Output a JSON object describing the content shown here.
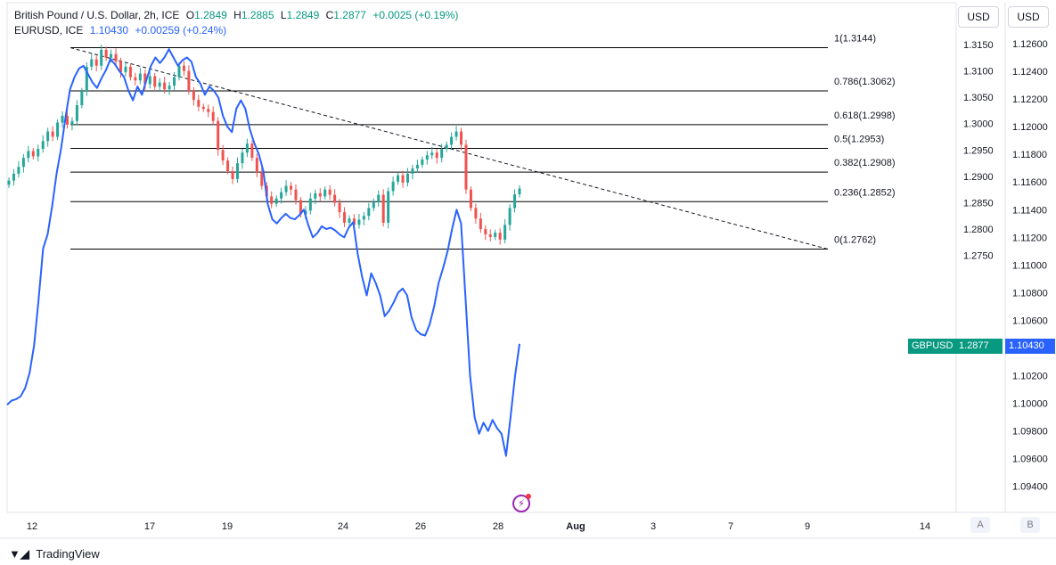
{
  "legend": {
    "line1": {
      "symbol": "British Pound / U.S. Dollar, 2h, ICE",
      "o_label": "O",
      "o": "1.2849",
      "h_label": "H",
      "h": "1.2885",
      "l_label": "L",
      "l": "1.2849",
      "c_label": "C",
      "c": "1.2877",
      "change": "+0.0025 (+0.19%)"
    },
    "line2": {
      "symbol": "EURUSD, ICE",
      "value": "1.10430",
      "change": "+0.00259 (+0.24%)"
    }
  },
  "currency_buttons": [
    "USD",
    "USD"
  ],
  "axis_buttons": [
    "A",
    "B"
  ],
  "branding": {
    "name": "TradingView"
  },
  "badges": {
    "symbol": "GBPUSD",
    "gbpusd_price": "1.2877",
    "eurusd_price": "1.10430"
  },
  "colors": {
    "up": "#26a69a",
    "down": "#ef5350",
    "eurusd_line": "#2962ff",
    "fib_line": "#000000",
    "badge_symbol": "#089981",
    "badge_eur": "#2962ff",
    "flash_icon": "#9c27b0"
  },
  "chart_data": {
    "type": "line",
    "x_axis": {
      "tick_labels": [
        "12",
        "17",
        "19",
        "24",
        "26",
        "28",
        "Aug",
        "3",
        "7",
        "9",
        "14"
      ]
    },
    "y_axis_left": {
      "label": "GBPUSD",
      "ticks": [
        "1.3150",
        "1.3100",
        "1.3050",
        "1.3000",
        "1.2950",
        "1.2900",
        "1.2850",
        "1.2800",
        "1.2750"
      ],
      "range": [
        1.2735,
        1.3185
      ]
    },
    "y_axis_right": {
      "label": "EURUSD",
      "ticks": [
        "1.12600",
        "1.12400",
        "1.12200",
        "1.12000",
        "1.11800",
        "1.11600",
        "1.11400",
        "1.11200",
        "1.11000",
        "1.10800",
        "1.10600",
        "1.10400",
        "1.10200",
        "1.10000",
        "1.09800",
        "1.09600",
        "1.09400"
      ],
      "range": [
        1.093,
        1.1277
      ]
    },
    "fibonacci": [
      {
        "level": "1",
        "price": 1.3144,
        "label": "1(1.3144)"
      },
      {
        "level": "0.786",
        "price": 1.3062,
        "label": "0.786(1.3062)"
      },
      {
        "level": "0.618",
        "price": 1.2998,
        "label": "0.618(1.2998)"
      },
      {
        "level": "0.5",
        "price": 1.2953,
        "label": "0.5(1.2953)"
      },
      {
        "level": "0.382",
        "price": 1.2908,
        "label": "0.382(1.2908)"
      },
      {
        "level": "0.236",
        "price": 1.2852,
        "label": "0.236(1.2852)"
      },
      {
        "level": "0",
        "price": 1.2762,
        "label": "0(1.2762)"
      }
    ],
    "trendline": {
      "style": "dashed",
      "from_price": 1.3144,
      "to_price": 1.2762
    },
    "series": [
      {
        "name": "British Pound / U.S. Dollar",
        "type": "candlestick",
        "closes": [
          1.2892,
          1.2905,
          1.2918,
          1.2935,
          1.2948,
          1.2938,
          1.2952,
          1.2967,
          1.2985,
          1.2975,
          1.3002,
          1.3015,
          1.2998,
          1.3005,
          1.3035,
          1.3062,
          1.3108,
          1.3122,
          1.311,
          1.314,
          1.3125,
          1.3132,
          1.3118,
          1.3098,
          1.3108,
          1.3088,
          1.3082,
          1.3095,
          1.3075,
          1.309,
          1.307,
          1.3078,
          1.3065,
          1.3072,
          1.3088,
          1.311,
          1.31,
          1.3062,
          1.3045,
          1.3032,
          1.3028,
          1.3022,
          1.3005,
          1.295,
          1.293,
          1.291,
          1.2895,
          1.2925,
          1.2945,
          1.2962,
          1.2935,
          1.2908,
          1.2882,
          1.2862,
          1.2848,
          1.2858,
          1.287,
          1.2882,
          1.2875,
          1.2855,
          1.2828,
          1.2835,
          1.2858,
          1.2868,
          1.2862,
          1.2875,
          1.2865,
          1.285,
          1.2832,
          1.2812,
          1.282,
          1.2808,
          1.2818,
          1.2825,
          1.284,
          1.2852,
          1.2865,
          1.2812,
          1.2872,
          1.289,
          1.2902,
          1.2888,
          1.2905,
          1.2915,
          1.2922,
          1.2932,
          1.294,
          1.2945,
          1.2935,
          1.2952,
          1.296,
          1.2975,
          1.2985,
          1.296,
          1.2875,
          1.284,
          1.282,
          1.28,
          1.279,
          1.2785,
          1.2793,
          1.278,
          1.2808,
          1.284,
          1.2866,
          1.2877
        ]
      },
      {
        "name": "EURUSD",
        "type": "line",
        "values": [
          1.0999,
          1.1002,
          1.1003,
          1.1005,
          1.1011,
          1.1022,
          1.1042,
          1.1075,
          1.1112,
          1.1122,
          1.1142,
          1.1166,
          1.1184,
          1.1207,
          1.1227,
          1.1236,
          1.1242,
          1.1244,
          1.1238,
          1.1232,
          1.1228,
          1.1235,
          1.1241,
          1.1249,
          1.1245,
          1.124,
          1.1236,
          1.1226,
          1.1219,
          1.1229,
          1.1223,
          1.1234,
          1.1244,
          1.125,
          1.1246,
          1.125,
          1.1256,
          1.125,
          1.1244,
          1.1248,
          1.125,
          1.1247,
          1.1236,
          1.1231,
          1.1223,
          1.1229,
          1.1226,
          1.1221,
          1.1208,
          1.12,
          1.1196,
          1.1213,
          1.1219,
          1.1213,
          1.1198,
          1.1188,
          1.118,
          1.1168,
          1.1144,
          1.1133,
          1.113,
          1.1134,
          1.1137,
          1.1134,
          1.1133,
          1.1136,
          1.114,
          1.1129,
          1.112,
          1.1123,
          1.1128,
          1.1126,
          1.1127,
          1.1125,
          1.1122,
          1.112,
          1.1127,
          1.1131,
          1.1108,
          1.1091,
          1.1078,
          1.1094,
          1.1087,
          1.1078,
          1.1063,
          1.1067,
          1.1073,
          1.108,
          1.1083,
          1.1078,
          1.1062,
          1.1053,
          1.105,
          1.1049,
          1.1057,
          1.107,
          1.1087,
          1.1098,
          1.111,
          1.1126,
          1.114,
          1.113,
          1.1075,
          1.102,
          1.099,
          1.0978,
          1.0986,
          1.098,
          1.0988,
          1.0982,
          1.0978,
          1.0962,
          1.099,
          1.102,
          1.1043
        ]
      }
    ]
  }
}
